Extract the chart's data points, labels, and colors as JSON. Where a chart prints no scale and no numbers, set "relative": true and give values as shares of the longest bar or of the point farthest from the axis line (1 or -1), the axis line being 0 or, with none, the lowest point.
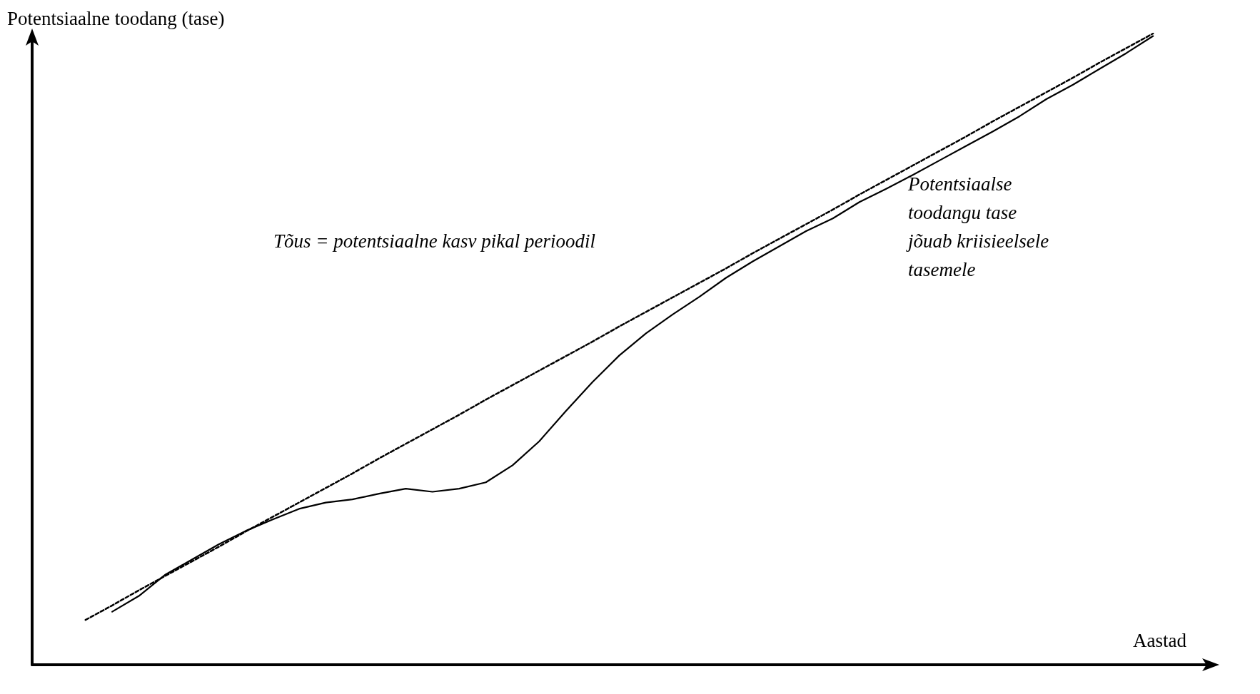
{
  "chart_data": {
    "type": "line",
    "relative": true,
    "xlabel": "Aastad",
    "ylabel": "Potentsiaalne toodang (tase)",
    "annotations": [
      "Tõus = potentsiaalne kasv pikal perioodil",
      "Potentsiaalse\ntoodangu tase\njõuab kriisieelsele\ntasemele"
    ],
    "categories": [
      null,
      null,
      null,
      null,
      null,
      null,
      null,
      null,
      null,
      null,
      null,
      null,
      null,
      null,
      null,
      null,
      null,
      null,
      null,
      null,
      null,
      null,
      null,
      null,
      null,
      null,
      null,
      null,
      null,
      null,
      null,
      null,
      null,
      null,
      null,
      null,
      null,
      null,
      null,
      null,
      null,
      null,
      null,
      null,
      null
    ],
    "grid": false,
    "marker": "none",
    "series": [
      {
        "color": "#000000",
        "line_style": "dashed",
        "values": [
          null,
          null,
          0.071,
          0.094,
          0.118,
          0.141,
          0.164,
          0.187,
          0.211,
          0.234,
          0.257,
          0.28,
          0.303,
          0.327,
          0.35,
          0.373,
          0.396,
          0.42,
          0.443,
          0.466,
          0.489,
          0.512,
          0.536,
          0.559,
          0.582,
          0.605,
          0.628,
          0.652,
          0.675,
          0.698,
          0.721,
          0.745,
          0.768,
          0.791,
          0.814,
          0.837,
          0.861,
          0.884,
          0.907,
          0.93,
          0.954,
          0.977,
          1,
          null,
          null
        ]
      },
      {
        "color": "#000000",
        "line_style": "solid",
        "values": [
          null,
          null,
          null,
          0.084,
          0.109,
          0.143,
          0.167,
          0.191,
          0.212,
          0.23,
          0.247,
          0.257,
          0.262,
          0.271,
          0.279,
          0.274,
          0.279,
          0.289,
          0.316,
          0.354,
          0.402,
          0.448,
          0.49,
          0.525,
          0.555,
          0.583,
          0.613,
          0.639,
          0.663,
          0.687,
          0.707,
          0.733,
          0.754,
          0.776,
          0.799,
          0.822,
          0.845,
          0.869,
          0.896,
          0.919,
          0.944,
          0.969,
          0.996,
          null,
          null
        ]
      }
    ]
  }
}
